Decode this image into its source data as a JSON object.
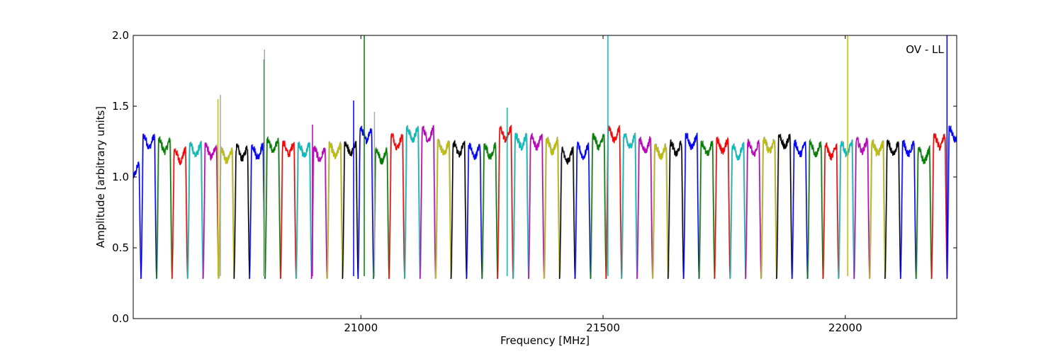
{
  "chart_data": {
    "type": "line",
    "title": "",
    "xlabel": "Frequency [MHz]",
    "ylabel": "Amplitude [arbitrary units]",
    "annotation": "OV - LL",
    "xlim": [
      20530,
      22230
    ],
    "ylim": [
      0.0,
      2.0
    ],
    "xticks": [
      21000,
      21500,
      22000
    ],
    "xtick_labels": [
      "21000",
      "21500",
      "22000"
    ],
    "yticks": [
      0.0,
      0.5,
      1.0,
      1.5,
      2.0
    ],
    "ytick_labels": [
      "0.0",
      "0.5",
      "1.0",
      "1.5",
      "2.0"
    ],
    "grid": false,
    "legend": "none",
    "colors": [
      "#0000ff",
      "#008000",
      "#ff0000",
      "#00bfbf",
      "#bf00bf",
      "#bfbf00",
      "#000000"
    ],
    "shadow_color": "#aaaaaa",
    "band_width_mhz": 32,
    "bands": [
      {
        "c": 20530,
        "lvl": 1.05,
        "color": "#0000ff"
      },
      {
        "c": 20562,
        "lvl": 1.25,
        "color": "#0000ff"
      },
      {
        "c": 20594,
        "lvl": 1.22,
        "color": "#008000"
      },
      {
        "c": 20626,
        "lvl": 1.15,
        "color": "#ff0000"
      },
      {
        "c": 20658,
        "lvl": 1.19,
        "color": "#00bfbf"
      },
      {
        "c": 20690,
        "lvl": 1.18,
        "color": "#bf00bf"
      },
      {
        "c": 20722,
        "lvl": 1.15,
        "color": "#bfbf00"
      },
      {
        "c": 20754,
        "lvl": 1.17,
        "color": "#000000"
      },
      {
        "c": 20786,
        "lvl": 1.18,
        "color": "#0000ff"
      },
      {
        "c": 20818,
        "lvl": 1.22,
        "color": "#008000"
      },
      {
        "c": 20850,
        "lvl": 1.2,
        "color": "#ff0000"
      },
      {
        "c": 20882,
        "lvl": 1.19,
        "color": "#00bfbf"
      },
      {
        "c": 20914,
        "lvl": 1.16,
        "color": "#bf00bf"
      },
      {
        "c": 20946,
        "lvl": 1.18,
        "color": "#bfbf00"
      },
      {
        "c": 20978,
        "lvl": 1.2,
        "color": "#000000"
      },
      {
        "c": 21010,
        "lvl": 1.3,
        "color": "#0000ff"
      },
      {
        "c": 21042,
        "lvl": 1.15,
        "color": "#008000"
      },
      {
        "c": 21074,
        "lvl": 1.25,
        "color": "#ff0000"
      },
      {
        "c": 21106,
        "lvl": 1.3,
        "color": "#00bfbf"
      },
      {
        "c": 21138,
        "lvl": 1.3,
        "color": "#bf00bf"
      },
      {
        "c": 21170,
        "lvl": 1.2,
        "color": "#bfbf00"
      },
      {
        "c": 21202,
        "lvl": 1.2,
        "color": "#000000"
      },
      {
        "c": 21234,
        "lvl": 1.18,
        "color": "#0000ff"
      },
      {
        "c": 21266,
        "lvl": 1.18,
        "color": "#008000"
      },
      {
        "c": 21298,
        "lvl": 1.3,
        "color": "#ff0000"
      },
      {
        "c": 21330,
        "lvl": 1.25,
        "color": "#00bfbf"
      },
      {
        "c": 21362,
        "lvl": 1.25,
        "color": "#bf00bf"
      },
      {
        "c": 21394,
        "lvl": 1.22,
        "color": "#bfbf00"
      },
      {
        "c": 21426,
        "lvl": 1.15,
        "color": "#000000"
      },
      {
        "c": 21458,
        "lvl": 1.18,
        "color": "#0000ff"
      },
      {
        "c": 21490,
        "lvl": 1.25,
        "color": "#008000"
      },
      {
        "c": 21522,
        "lvl": 1.3,
        "color": "#ff0000"
      },
      {
        "c": 21554,
        "lvl": 1.25,
        "color": "#00bfbf"
      },
      {
        "c": 21586,
        "lvl": 1.22,
        "color": "#bf00bf"
      },
      {
        "c": 21618,
        "lvl": 1.18,
        "color": "#bfbf00"
      },
      {
        "c": 21650,
        "lvl": 1.2,
        "color": "#000000"
      },
      {
        "c": 21682,
        "lvl": 1.25,
        "color": "#0000ff"
      },
      {
        "c": 21714,
        "lvl": 1.2,
        "color": "#008000"
      },
      {
        "c": 21746,
        "lvl": 1.22,
        "color": "#ff0000"
      },
      {
        "c": 21778,
        "lvl": 1.18,
        "color": "#00bfbf"
      },
      {
        "c": 21810,
        "lvl": 1.2,
        "color": "#bf00bf"
      },
      {
        "c": 21842,
        "lvl": 1.22,
        "color": "#bfbf00"
      },
      {
        "c": 21874,
        "lvl": 1.25,
        "color": "#000000"
      },
      {
        "c": 21906,
        "lvl": 1.2,
        "color": "#0000ff"
      },
      {
        "c": 21938,
        "lvl": 1.2,
        "color": "#008000"
      },
      {
        "c": 21970,
        "lvl": 1.18,
        "color": "#ff0000"
      },
      {
        "c": 22002,
        "lvl": 1.2,
        "color": "#00bfbf"
      },
      {
        "c": 22034,
        "lvl": 1.22,
        "color": "#bf00bf"
      },
      {
        "c": 22066,
        "lvl": 1.2,
        "color": "#bfbf00"
      },
      {
        "c": 22098,
        "lvl": 1.2,
        "color": "#000000"
      },
      {
        "c": 22130,
        "lvl": 1.2,
        "color": "#0000ff"
      },
      {
        "c": 22162,
        "lvl": 1.15,
        "color": "#008000"
      },
      {
        "c": 22194,
        "lvl": 1.25,
        "color": "#ff0000"
      },
      {
        "c": 22226,
        "lvl": 1.3,
        "color": "#0000ff"
      }
    ],
    "spikes": [
      {
        "x": 20705,
        "y": 1.55,
        "color": "#bfbf00"
      },
      {
        "x": 20710,
        "y": 1.58,
        "color": "#aaaaaa"
      },
      {
        "x": 20800,
        "y": 1.83,
        "color": "#008000"
      },
      {
        "x": 20801,
        "y": 1.9,
        "color": "#aaaaaa"
      },
      {
        "x": 20900,
        "y": 1.37,
        "color": "#bf00bf"
      },
      {
        "x": 20985,
        "y": 1.54,
        "color": "#0000ff"
      },
      {
        "x": 21007,
        "y": 2.0,
        "color": "#008000"
      },
      {
        "x": 21028,
        "y": 1.46,
        "color": "#aaaaaa"
      },
      {
        "x": 21302,
        "y": 1.49,
        "color": "#00bfbf"
      },
      {
        "x": 21510,
        "y": 2.0,
        "color": "#00bfbf"
      },
      {
        "x": 22005,
        "y": 2.0,
        "color": "#bfbf00"
      },
      {
        "x": 22210,
        "y": 2.0,
        "color": "#0000ff"
      }
    ]
  }
}
